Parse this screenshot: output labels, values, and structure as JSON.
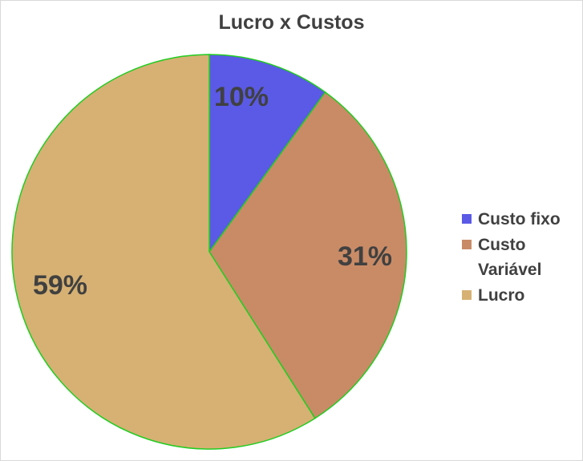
{
  "chart_data": {
    "type": "pie",
    "title": "Lucro x Custos",
    "categories": [
      "Custo fixo",
      "Custo Variável",
      "Lucro"
    ],
    "values": [
      10,
      31,
      59
    ],
    "value_labels": [
      "10%",
      "31%",
      "59%"
    ],
    "colors": [
      "#5a5ae6",
      "#c98b66",
      "#d6b173"
    ],
    "outline_color": "#22cc22",
    "legend_position": "right"
  },
  "legend": {
    "items": [
      {
        "label": "Custo fixo",
        "color": "#5a5ae6"
      },
      {
        "label": "Custo Variável",
        "color": "#c98b66"
      },
      {
        "label": "Lucro",
        "color": "#d6b173"
      }
    ]
  }
}
